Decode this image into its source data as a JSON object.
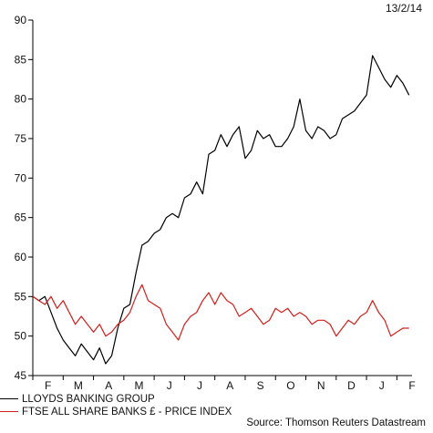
{
  "date_label": "13/2/14",
  "source": "Source: Thomson Reuters Datastream",
  "chart_data": {
    "type": "line",
    "ylim": [
      45,
      90
    ],
    "yticks": [
      45,
      50,
      55,
      60,
      65,
      70,
      75,
      80,
      85,
      90
    ],
    "xlim": [
      0,
      12.5
    ],
    "x_ticks": [
      "F",
      "M",
      "A",
      "M",
      "J",
      "J",
      "A",
      "S",
      "O",
      "N",
      "D",
      "J",
      "F"
    ],
    "grid": false,
    "legend_position": "bottom-left",
    "colors": {
      "lloyds": "#000000",
      "ftse": "#d0201c"
    },
    "series": [
      {
        "name": "LLOYDS BANKING GROUP",
        "x": [
          0,
          0.2,
          0.4,
          0.6,
          0.8,
          1.0,
          1.2,
          1.4,
          1.6,
          1.8,
          2.0,
          2.2,
          2.4,
          2.6,
          2.8,
          3.0,
          3.2,
          3.4,
          3.6,
          3.8,
          4.0,
          4.2,
          4.4,
          4.6,
          4.8,
          5.0,
          5.2,
          5.4,
          5.6,
          5.8,
          6.0,
          6.2,
          6.4,
          6.6,
          6.8,
          7.0,
          7.2,
          7.4,
          7.6,
          7.8,
          8.0,
          8.2,
          8.4,
          8.6,
          8.8,
          9.0,
          9.2,
          9.4,
          9.6,
          9.8,
          10.0,
          10.2,
          10.4,
          10.6,
          10.8,
          11.0,
          11.2,
          11.4,
          11.6,
          11.8,
          12.0,
          12.2,
          12.4
        ],
        "values": [
          55,
          54.5,
          55,
          53,
          51,
          49.5,
          48.5,
          47.5,
          49,
          48,
          47,
          48.5,
          46.5,
          47.5,
          51,
          53.5,
          54,
          58,
          61.5,
          62,
          63,
          63.5,
          65,
          65.5,
          65,
          67.5,
          68,
          69.5,
          68,
          73,
          73.5,
          75.5,
          74,
          75.5,
          76.5,
          72.5,
          73.5,
          76,
          75,
          75.5,
          74,
          74,
          75,
          76.5,
          80,
          76,
          75,
          76.5,
          76,
          75,
          75.5,
          77.5,
          78,
          78.5,
          79.5,
          80.5,
          85.5,
          84,
          82.5,
          81.5,
          83,
          82,
          80.5
        ]
      },
      {
        "name": "FTSE ALL SHARE BANKS £ - PRICE INDEX",
        "x": [
          0,
          0.2,
          0.4,
          0.6,
          0.8,
          1.0,
          1.2,
          1.4,
          1.6,
          1.8,
          2.0,
          2.2,
          2.4,
          2.6,
          2.8,
          3.0,
          3.2,
          3.4,
          3.6,
          3.8,
          4.0,
          4.2,
          4.4,
          4.6,
          4.8,
          5.0,
          5.2,
          5.4,
          5.6,
          5.8,
          6.0,
          6.2,
          6.4,
          6.6,
          6.8,
          7.0,
          7.2,
          7.4,
          7.6,
          7.8,
          8.0,
          8.2,
          8.4,
          8.6,
          8.8,
          9.0,
          9.2,
          9.4,
          9.6,
          9.8,
          10.0,
          10.2,
          10.4,
          10.6,
          10.8,
          11.0,
          11.2,
          11.4,
          11.6,
          11.8,
          12.0,
          12.2,
          12.4
        ],
        "values": [
          55,
          54.5,
          54,
          55,
          53.5,
          54.5,
          53,
          51.5,
          52.5,
          51.5,
          50.5,
          51.5,
          50,
          50.5,
          51.5,
          52,
          53,
          55,
          56.5,
          54.5,
          54,
          53.5,
          51.5,
          50.5,
          49.5,
          51.5,
          52.5,
          53,
          54.5,
          55.5,
          54,
          55.5,
          54.5,
          54,
          52.5,
          53,
          53.5,
          52.5,
          51.5,
          52,
          53.5,
          53,
          53.5,
          52.5,
          53,
          52.5,
          51.5,
          52,
          52,
          51.5,
          50,
          51,
          52,
          51.5,
          52.5,
          53,
          54.5,
          53,
          52,
          50,
          50.5,
          51,
          51
        ]
      }
    ]
  }
}
